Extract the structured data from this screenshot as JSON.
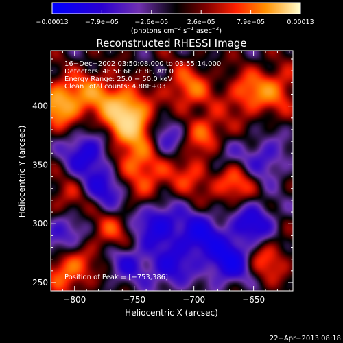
{
  "chart_data": {
    "type": "heatmap",
    "title": "Reconstructed RHESSI Image",
    "xlabel": "Heliocentric X (arcsec)",
    "ylabel": "Heliocentric Y (arcsec)",
    "xlim": [
      -820,
      -617
    ],
    "ylim": [
      243,
      447
    ],
    "xticks": [
      -800,
      -750,
      -700,
      -650
    ],
    "xtick_labels": [
      "−800",
      "−750",
      "−700",
      "−650"
    ],
    "yticks": [
      250,
      300,
      350,
      400
    ],
    "ytick_labels": [
      "250",
      "300",
      "350",
      "400"
    ],
    "colorbar": {
      "min": -0.00013,
      "max": 0.00013,
      "tick_labels": [
        "−0.00013",
        "−7.9e−05",
        "−2.6e−05",
        "2.6e−05",
        "7.9e−05",
        "0.00013"
      ],
      "unit_main": "(photons cm",
      "unit_sup1": "−2",
      "unit_mid1": " s",
      "unit_sup2": "−1",
      "unit_mid2": " asec",
      "unit_sup3": "−2",
      "unit_end": ")"
    },
    "annotations": [
      "16−Dec−2002 03:50:08.000 to 03:55:14.000",
      "Detectors: 4F 5F 6F 7F 8F, Att 0",
      "Energy Range: 25.0 − 50.0 keV",
      "Clean    Total counts: 4.88E+03"
    ],
    "peak_label": "Position of Peak = [−753,386]",
    "peak": [
      -753,
      386
    ],
    "sources": [
      {
        "x": -753,
        "y": 386,
        "v": 1.0
      },
      {
        "x": -812,
        "y": 402,
        "v": 0.9
      },
      {
        "x": -785,
        "y": 412,
        "v": 0.5
      },
      {
        "x": -762,
        "y": 400,
        "v": 0.6
      },
      {
        "x": -750,
        "y": 355,
        "v": 0.55
      },
      {
        "x": -738,
        "y": 335,
        "v": 0.4
      },
      {
        "x": -705,
        "y": 415,
        "v": 0.6
      },
      {
        "x": -690,
        "y": 375,
        "v": 0.65
      },
      {
        "x": -700,
        "y": 345,
        "v": 0.5
      },
      {
        "x": -668,
        "y": 335,
        "v": 0.6
      },
      {
        "x": -655,
        "y": 410,
        "v": 0.55
      },
      {
        "x": -630,
        "y": 415,
        "v": 0.5
      },
      {
        "x": -805,
        "y": 262,
        "v": 0.7
      },
      {
        "x": -770,
        "y": 292,
        "v": 0.45
      },
      {
        "x": -640,
        "y": 270,
        "v": 0.5
      },
      {
        "x": -805,
        "y": 320,
        "v": 0.35
      },
      {
        "x": -790,
        "y": 360,
        "v": -0.7
      },
      {
        "x": -775,
        "y": 330,
        "v": -0.6
      },
      {
        "x": -730,
        "y": 300,
        "v": -0.75
      },
      {
        "x": -695,
        "y": 290,
        "v": -0.8
      },
      {
        "x": -670,
        "y": 268,
        "v": -0.9
      },
      {
        "x": -650,
        "y": 300,
        "v": -0.7
      },
      {
        "x": -720,
        "y": 262,
        "v": -0.6
      },
      {
        "x": -755,
        "y": 268,
        "v": -0.5
      },
      {
        "x": -810,
        "y": 290,
        "v": -0.6
      },
      {
        "x": -640,
        "y": 355,
        "v": -0.5
      },
      {
        "x": -720,
        "y": 375,
        "v": -0.45
      },
      {
        "x": -680,
        "y": 355,
        "v": -0.5
      }
    ]
  },
  "footer": {
    "timestamp": "22−Apr−2013 08:18"
  }
}
